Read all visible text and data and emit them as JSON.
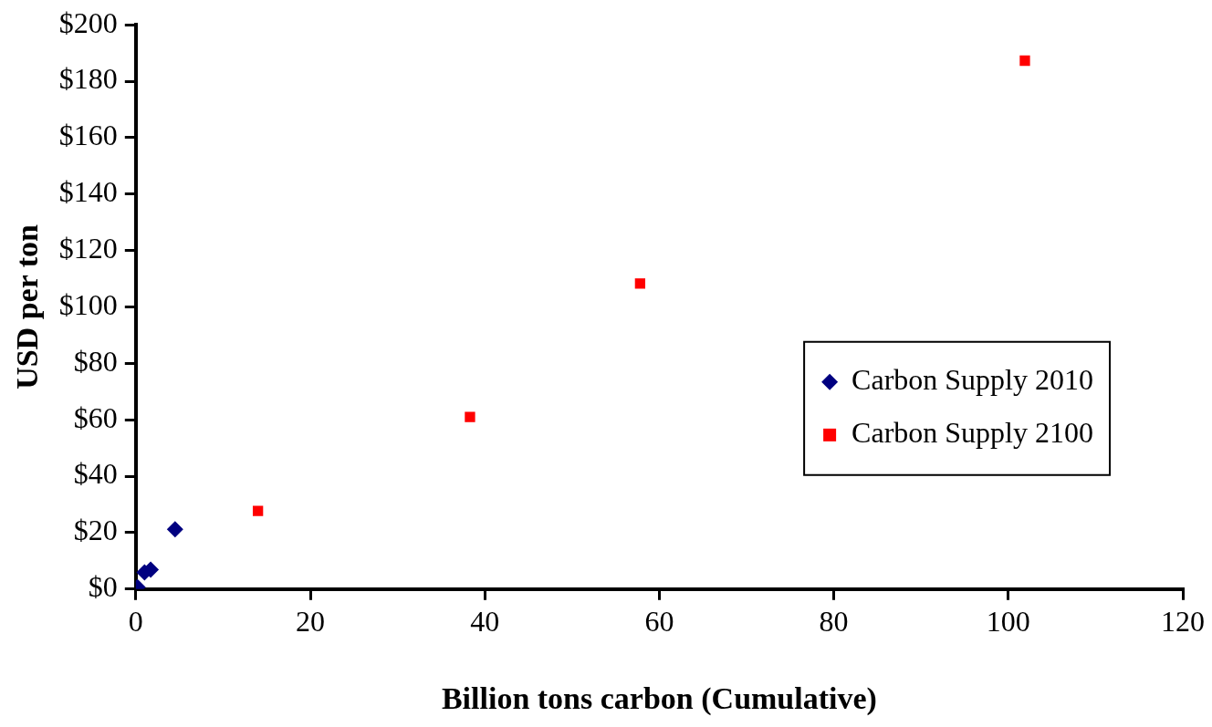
{
  "chart_data": {
    "type": "scatter",
    "xlabel": "Billion tons carbon (Cumulative)",
    "ylabel": "USD per ton",
    "xlim": [
      0,
      120
    ],
    "xticks": [
      0,
      20,
      40,
      60,
      80,
      100,
      120
    ],
    "ylim": [
      0,
      200
    ],
    "yticks": [
      {
        "value": 0,
        "label": "$0"
      },
      {
        "value": 20,
        "label": "$20"
      },
      {
        "value": 40,
        "label": "$40"
      },
      {
        "value": 60,
        "label": "$60"
      },
      {
        "value": 80,
        "label": "$80"
      },
      {
        "value": 100,
        "label": "$100"
      },
      {
        "value": 120,
        "label": "$120"
      },
      {
        "value": 140,
        "label": "$140"
      },
      {
        "value": 160,
        "label": "$160"
      },
      {
        "value": 180,
        "label": "$180"
      },
      {
        "value": 200,
        "label": "$200"
      }
    ],
    "grid": false,
    "legend": "right",
    "series": [
      {
        "name": "Carbon Supply 2010",
        "color": "#000080",
        "marker": "diamond",
        "x": [
          0.2,
          1.0,
          1.7,
          4.5
        ],
        "values": [
          0.7,
          5.9,
          6.9,
          21.2
        ]
      },
      {
        "name": "Carbon Supply 2100",
        "color": "#ff0000",
        "marker": "square",
        "x": [
          14,
          38.3,
          57.8,
          101.9
        ],
        "values": [
          27.7,
          61,
          108.3,
          187.3
        ]
      }
    ]
  }
}
